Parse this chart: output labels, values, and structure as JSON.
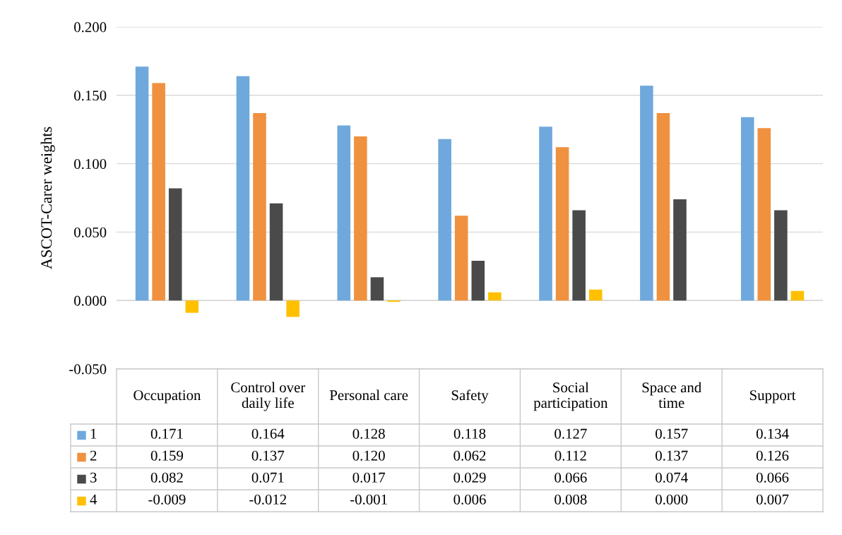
{
  "chart_data": {
    "type": "bar",
    "ylabel": "ASCOT-Carer weights",
    "categories": [
      "Occupation",
      "Control over daily life",
      "Personal care",
      "Safety",
      "Social participation",
      "Space and time",
      "Support"
    ],
    "series": [
      {
        "name": "1",
        "color": "#6fa8dc",
        "values": [
          0.171,
          0.164,
          0.128,
          0.118,
          0.127,
          0.157,
          0.134
        ],
        "value_labels": [
          "0.171",
          "0.164",
          "0.128",
          "0.118",
          "0.127",
          "0.157",
          "0.134"
        ]
      },
      {
        "name": "2",
        "color": "#f0913f",
        "values": [
          0.159,
          0.137,
          0.12,
          0.062,
          0.112,
          0.137,
          0.126
        ],
        "value_labels": [
          "0.159",
          "0.137",
          "0.120",
          "0.062",
          "0.112",
          "0.137",
          "0.126"
        ]
      },
      {
        "name": "3",
        "color": "#4a4a4a",
        "values": [
          0.082,
          0.071,
          0.017,
          0.029,
          0.066,
          0.074,
          0.066
        ],
        "value_labels": [
          "0.082",
          "0.071",
          "0.017",
          "0.029",
          "0.066",
          "0.074",
          "0.066"
        ]
      },
      {
        "name": "4",
        "color": "#ffc000",
        "values": [
          -0.009,
          -0.012,
          -0.001,
          0.006,
          0.008,
          0.0,
          0.007
        ],
        "value_labels": [
          "-0.009",
          "-0.012",
          "-0.001",
          "0.006",
          "0.008",
          "0.000",
          "0.007"
        ]
      }
    ],
    "ylim": [
      -0.05,
      0.2
    ],
    "yticks": [
      {
        "value": -0.05,
        "label": "-0.050"
      },
      {
        "value": 0.0,
        "label": "0.000"
      },
      {
        "value": 0.05,
        "label": "0.050"
      },
      {
        "value": 0.1,
        "label": "0.100"
      },
      {
        "value": 0.15,
        "label": "0.150"
      },
      {
        "value": 0.2,
        "label": "0.200"
      }
    ],
    "grid": "y",
    "legend": "bottom"
  }
}
